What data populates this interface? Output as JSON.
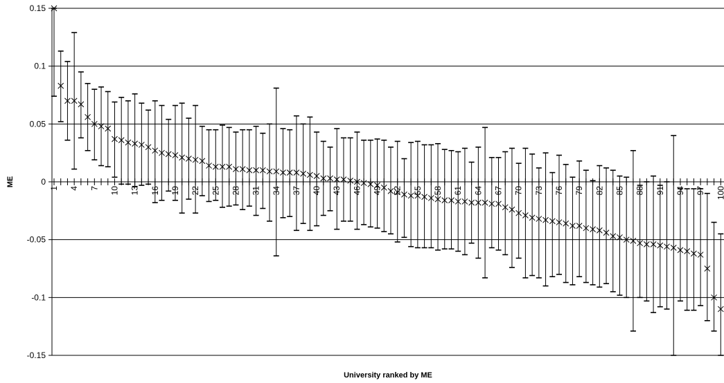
{
  "chart_data": {
    "type": "scatter",
    "xlabel": "University ranked by ME",
    "ylabel": "ME",
    "ylim": [
      -0.15,
      0.15
    ],
    "yticks": [
      0.15,
      0.1,
      0.05,
      0,
      -0.05,
      -0.1,
      -0.15
    ],
    "ytick_labels": [
      "0.15",
      "0.1",
      "0.05",
      "0",
      "-0.05",
      "-0.1",
      "-0.15"
    ],
    "xlim": [
      1,
      100
    ],
    "xtick_labels": [
      "1",
      "4",
      "7",
      "10",
      "13",
      "16",
      "19",
      "22",
      "25",
      "28",
      "31",
      "34",
      "37",
      "40",
      "43",
      "46",
      "49",
      "52",
      "55",
      "58",
      "61",
      "64",
      "67",
      "70",
      "73",
      "76",
      "79",
      "82",
      "85",
      "88",
      "91",
      "94",
      "97",
      "100"
    ],
    "grid": true,
    "legend": "none",
    "marker": "x",
    "series": [
      {
        "x": [
          1,
          2,
          3,
          4,
          5,
          6,
          7,
          8,
          9,
          10,
          11,
          12,
          13,
          14,
          15,
          16,
          17,
          18,
          19,
          20,
          21,
          22,
          23,
          24,
          25,
          26,
          27,
          28,
          29,
          30,
          31,
          32,
          33,
          34,
          35,
          36,
          37,
          38,
          39,
          40,
          41,
          42,
          43,
          44,
          45,
          46,
          47,
          48,
          49,
          50,
          51,
          52,
          53,
          54,
          55,
          56,
          57,
          58,
          59,
          60,
          61,
          62,
          63,
          64,
          65,
          66,
          67,
          68,
          69,
          70,
          71,
          72,
          73,
          74,
          75,
          76,
          77,
          78,
          79,
          80,
          81,
          82,
          83,
          84,
          85,
          86,
          87,
          88,
          89,
          90,
          91,
          92,
          93,
          94,
          95,
          96,
          97,
          98,
          99,
          100
        ],
        "y": [
          0.15,
          0.083,
          0.07,
          0.07,
          0.067,
          0.056,
          0.05,
          0.048,
          0.046,
          0.037,
          0.036,
          0.034,
          0.033,
          0.032,
          0.03,
          0.027,
          0.025,
          0.024,
          0.023,
          0.021,
          0.02,
          0.019,
          0.018,
          0.014,
          0.013,
          0.013,
          0.013,
          0.011,
          0.011,
          0.01,
          0.01,
          0.01,
          0.009,
          0.009,
          0.008,
          0.008,
          0.008,
          0.007,
          0.006,
          0.005,
          0.003,
          0.003,
          0.002,
          0.002,
          0.001,
          0.0,
          -0.001,
          -0.002,
          -0.003,
          -0.005,
          -0.008,
          -0.009,
          -0.011,
          -0.012,
          -0.012,
          -0.013,
          -0.014,
          -0.015,
          -0.016,
          -0.016,
          -0.017,
          -0.017,
          -0.018,
          -0.018,
          -0.018,
          -0.019,
          -0.019,
          -0.022,
          -0.024,
          -0.027,
          -0.029,
          -0.031,
          -0.032,
          -0.033,
          -0.034,
          -0.035,
          -0.036,
          -0.038,
          -0.038,
          -0.04,
          -0.041,
          -0.042,
          -0.044,
          -0.047,
          -0.048,
          -0.05,
          -0.051,
          -0.053,
          -0.054,
          -0.054,
          -0.055,
          -0.056,
          -0.057,
          -0.059,
          -0.06,
          -0.062,
          -0.063,
          -0.075,
          -0.1,
          -0.11
        ],
        "upper": [
          0.15,
          0.113,
          0.104,
          0.129,
          0.095,
          0.085,
          0.08,
          0.082,
          0.078,
          0.069,
          0.073,
          0.07,
          0.076,
          0.068,
          0.062,
          0.07,
          0.066,
          0.054,
          0.066,
          0.068,
          0.055,
          0.066,
          0.048,
          0.045,
          0.045,
          0.049,
          0.047,
          0.043,
          0.045,
          0.045,
          0.048,
          0.042,
          0.05,
          0.081,
          0.046,
          0.045,
          0.057,
          0.05,
          0.056,
          0.043,
          0.035,
          0.03,
          0.046,
          0.038,
          0.038,
          0.043,
          0.036,
          0.036,
          0.037,
          0.036,
          0.03,
          0.035,
          0.02,
          0.034,
          0.035,
          0.032,
          0.032,
          0.033,
          0.028,
          0.027,
          0.026,
          0.029,
          0.017,
          0.03,
          0.047,
          0.021,
          0.021,
          0.026,
          0.029,
          0.016,
          0.029,
          0.024,
          0.012,
          0.025,
          0.008,
          0.023,
          0.015,
          0.004,
          0.018,
          0.01,
          0.001,
          0.014,
          0.012,
          0.01,
          0.005,
          0.004,
          0.027,
          -0.003,
          0.0,
          0.005,
          -0.003,
          0.0,
          0.04,
          -0.006,
          -0.006,
          -0.006,
          -0.006,
          -0.01,
          -0.035,
          -0.045
        ],
        "lower": [
          0.074,
          0.052,
          0.036,
          0.011,
          0.038,
          0.027,
          0.019,
          0.014,
          0.013,
          0.004,
          -0.002,
          -0.002,
          -0.004,
          -0.003,
          -0.002,
          -0.018,
          -0.016,
          -0.008,
          -0.016,
          -0.027,
          -0.015,
          -0.027,
          -0.012,
          -0.017,
          -0.016,
          -0.022,
          -0.021,
          -0.02,
          -0.024,
          -0.021,
          -0.029,
          -0.023,
          -0.034,
          -0.064,
          -0.031,
          -0.03,
          -0.042,
          -0.036,
          -0.042,
          -0.038,
          -0.029,
          -0.025,
          -0.041,
          -0.034,
          -0.034,
          -0.041,
          -0.037,
          -0.039,
          -0.04,
          -0.043,
          -0.045,
          -0.052,
          -0.048,
          -0.056,
          -0.057,
          -0.057,
          -0.057,
          -0.059,
          -0.058,
          -0.058,
          -0.06,
          -0.063,
          -0.053,
          -0.066,
          -0.083,
          -0.057,
          -0.059,
          -0.063,
          -0.074,
          -0.066,
          -0.083,
          -0.081,
          -0.083,
          -0.09,
          -0.082,
          -0.08,
          -0.087,
          -0.089,
          -0.082,
          -0.087,
          -0.089,
          -0.091,
          -0.088,
          -0.095,
          -0.098,
          -0.1,
          -0.129,
          -0.1,
          -0.103,
          -0.113,
          -0.108,
          -0.11,
          -0.15,
          -0.103,
          -0.111,
          -0.111,
          -0.107,
          -0.12,
          -0.129,
          -0.15
        ]
      }
    ]
  }
}
